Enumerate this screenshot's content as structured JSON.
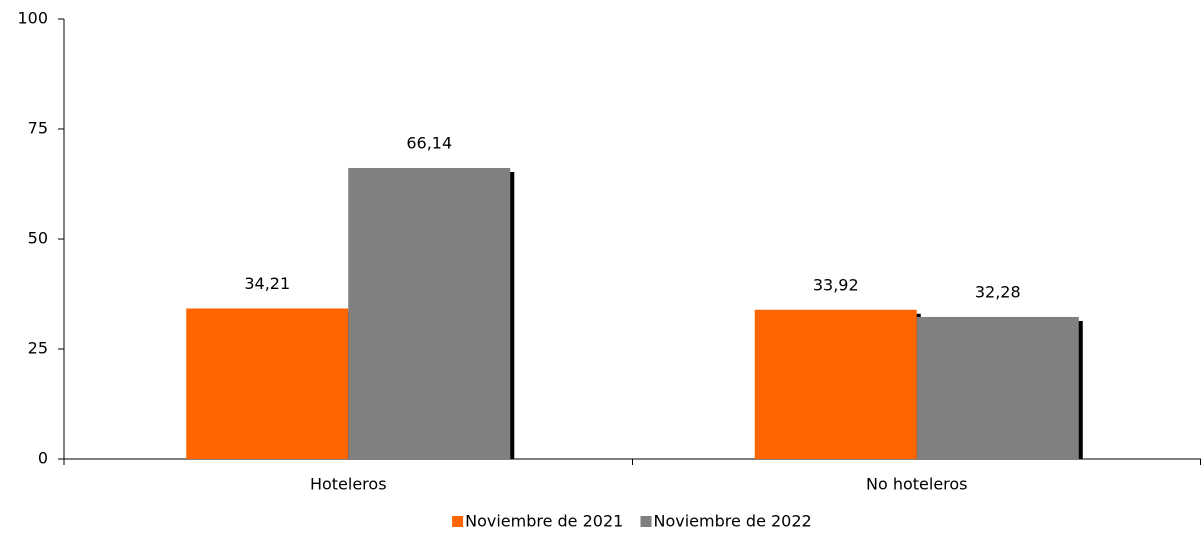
{
  "chart_data": {
    "type": "bar",
    "categories": [
      "Hoteleros",
      "No hoteleros"
    ],
    "series": [
      {
        "name": "Noviembre de 2021",
        "color": "#ff6600",
        "values": [
          34.21,
          33.92
        ],
        "value_labels": [
          "34,21",
          "33,92"
        ]
      },
      {
        "name": "Noviembre de 2022",
        "color": "#808080",
        "values": [
          66.14,
          32.28
        ],
        "value_labels": [
          "66,14",
          "32,28"
        ]
      }
    ],
    "ylim": [
      0,
      100
    ],
    "yticks": [
      0,
      25,
      50,
      75,
      100
    ],
    "grid": false,
    "legend": "bottom"
  }
}
